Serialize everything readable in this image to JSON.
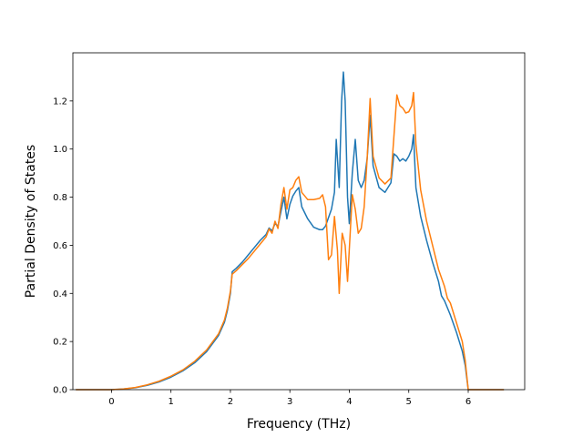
{
  "chart_data": {
    "type": "line",
    "title": "",
    "xlabel": "Frequency (THz)",
    "ylabel": "Partial Density of States",
    "xlim": [
      -0.65,
      6.95
    ],
    "ylim": [
      0.0,
      1.4
    ],
    "xticks": [
      0,
      1,
      2,
      3,
      4,
      5,
      6
    ],
    "yticks": [
      0.0,
      0.2,
      0.4,
      0.6,
      0.8,
      1.0,
      1.2
    ],
    "grid": false,
    "legend": "none",
    "series": [
      {
        "color": "#1f77b4",
        "points": [
          [
            -0.6,
            0.0
          ],
          [
            0.0,
            0.0
          ],
          [
            0.2,
            0.003
          ],
          [
            0.4,
            0.008
          ],
          [
            0.6,
            0.018
          ],
          [
            0.8,
            0.032
          ],
          [
            1.0,
            0.052
          ],
          [
            1.2,
            0.078
          ],
          [
            1.4,
            0.112
          ],
          [
            1.6,
            0.158
          ],
          [
            1.8,
            0.225
          ],
          [
            1.9,
            0.28
          ],
          [
            1.95,
            0.33
          ],
          [
            2.0,
            0.4
          ],
          [
            2.03,
            0.49
          ],
          [
            2.1,
            0.505
          ],
          [
            2.2,
            0.53
          ],
          [
            2.3,
            0.56
          ],
          [
            2.4,
            0.59
          ],
          [
            2.5,
            0.62
          ],
          [
            2.6,
            0.645
          ],
          [
            2.65,
            0.672
          ],
          [
            2.7,
            0.66
          ],
          [
            2.75,
            0.69
          ],
          [
            2.8,
            0.68
          ],
          [
            2.85,
            0.74
          ],
          [
            2.9,
            0.8
          ],
          [
            2.95,
            0.71
          ],
          [
            3.0,
            0.77
          ],
          [
            3.05,
            0.805
          ],
          [
            3.1,
            0.825
          ],
          [
            3.15,
            0.84
          ],
          [
            3.2,
            0.76
          ],
          [
            3.3,
            0.71
          ],
          [
            3.4,
            0.675
          ],
          [
            3.5,
            0.665
          ],
          [
            3.55,
            0.665
          ],
          [
            3.6,
            0.68
          ],
          [
            3.7,
            0.75
          ],
          [
            3.75,
            0.82
          ],
          [
            3.78,
            1.04
          ],
          [
            3.83,
            0.84
          ],
          [
            3.87,
            1.2
          ],
          [
            3.9,
            1.32
          ],
          [
            3.93,
            1.2
          ],
          [
            3.97,
            0.8
          ],
          [
            4.0,
            0.69
          ],
          [
            4.05,
            0.9
          ],
          [
            4.1,
            1.04
          ],
          [
            4.15,
            0.87
          ],
          [
            4.2,
            0.84
          ],
          [
            4.25,
            0.87
          ],
          [
            4.3,
            0.96
          ],
          [
            4.35,
            1.14
          ],
          [
            4.4,
            0.93
          ],
          [
            4.5,
            0.84
          ],
          [
            4.6,
            0.82
          ],
          [
            4.7,
            0.86
          ],
          [
            4.75,
            0.98
          ],
          [
            4.8,
            0.97
          ],
          [
            4.85,
            0.95
          ],
          [
            4.9,
            0.96
          ],
          [
            4.95,
            0.95
          ],
          [
            5.0,
            0.97
          ],
          [
            5.05,
            1.0
          ],
          [
            5.08,
            1.06
          ],
          [
            5.12,
            0.84
          ],
          [
            5.2,
            0.72
          ],
          [
            5.3,
            0.62
          ],
          [
            5.4,
            0.53
          ],
          [
            5.5,
            0.45
          ],
          [
            5.55,
            0.39
          ],
          [
            5.6,
            0.37
          ],
          [
            5.65,
            0.34
          ],
          [
            5.7,
            0.31
          ],
          [
            5.8,
            0.24
          ],
          [
            5.9,
            0.16
          ],
          [
            5.95,
            0.1
          ],
          [
            6.0,
            0.0
          ],
          [
            6.6,
            0.0
          ]
        ]
      },
      {
        "color": "#ff7f0e",
        "points": [
          [
            -0.6,
            0.0
          ],
          [
            0.0,
            0.0
          ],
          [
            0.2,
            0.003
          ],
          [
            0.4,
            0.009
          ],
          [
            0.6,
            0.02
          ],
          [
            0.8,
            0.035
          ],
          [
            1.0,
            0.056
          ],
          [
            1.2,
            0.082
          ],
          [
            1.4,
            0.118
          ],
          [
            1.6,
            0.165
          ],
          [
            1.8,
            0.232
          ],
          [
            1.9,
            0.29
          ],
          [
            1.95,
            0.34
          ],
          [
            2.0,
            0.41
          ],
          [
            2.03,
            0.48
          ],
          [
            2.1,
            0.495
          ],
          [
            2.2,
            0.52
          ],
          [
            2.3,
            0.545
          ],
          [
            2.4,
            0.575
          ],
          [
            2.5,
            0.605
          ],
          [
            2.6,
            0.635
          ],
          [
            2.65,
            0.668
          ],
          [
            2.7,
            0.65
          ],
          [
            2.75,
            0.7
          ],
          [
            2.8,
            0.67
          ],
          [
            2.85,
            0.77
          ],
          [
            2.9,
            0.84
          ],
          [
            2.95,
            0.75
          ],
          [
            3.0,
            0.83
          ],
          [
            3.05,
            0.84
          ],
          [
            3.1,
            0.87
          ],
          [
            3.15,
            0.885
          ],
          [
            3.2,
            0.82
          ],
          [
            3.3,
            0.79
          ],
          [
            3.4,
            0.79
          ],
          [
            3.5,
            0.795
          ],
          [
            3.55,
            0.81
          ],
          [
            3.6,
            0.76
          ],
          [
            3.65,
            0.54
          ],
          [
            3.7,
            0.56
          ],
          [
            3.75,
            0.72
          ],
          [
            3.8,
            0.58
          ],
          [
            3.83,
            0.4
          ],
          [
            3.88,
            0.65
          ],
          [
            3.93,
            0.6
          ],
          [
            3.97,
            0.45
          ],
          [
            4.05,
            0.81
          ],
          [
            4.1,
            0.75
          ],
          [
            4.15,
            0.65
          ],
          [
            4.2,
            0.67
          ],
          [
            4.25,
            0.76
          ],
          [
            4.3,
            0.96
          ],
          [
            4.35,
            1.21
          ],
          [
            4.4,
            0.97
          ],
          [
            4.5,
            0.88
          ],
          [
            4.6,
            0.855
          ],
          [
            4.7,
            0.88
          ],
          [
            4.8,
            1.225
          ],
          [
            4.85,
            1.18
          ],
          [
            4.9,
            1.17
          ],
          [
            4.95,
            1.15
          ],
          [
            5.0,
            1.155
          ],
          [
            5.05,
            1.18
          ],
          [
            5.08,
            1.235
          ],
          [
            5.12,
            1.02
          ],
          [
            5.2,
            0.83
          ],
          [
            5.3,
            0.7
          ],
          [
            5.4,
            0.6
          ],
          [
            5.5,
            0.5
          ],
          [
            5.6,
            0.43
          ],
          [
            5.65,
            0.38
          ],
          [
            5.7,
            0.36
          ],
          [
            5.8,
            0.28
          ],
          [
            5.9,
            0.2
          ],
          [
            5.95,
            0.12
          ],
          [
            6.0,
            0.0
          ],
          [
            6.6,
            0.0
          ]
        ]
      }
    ]
  }
}
